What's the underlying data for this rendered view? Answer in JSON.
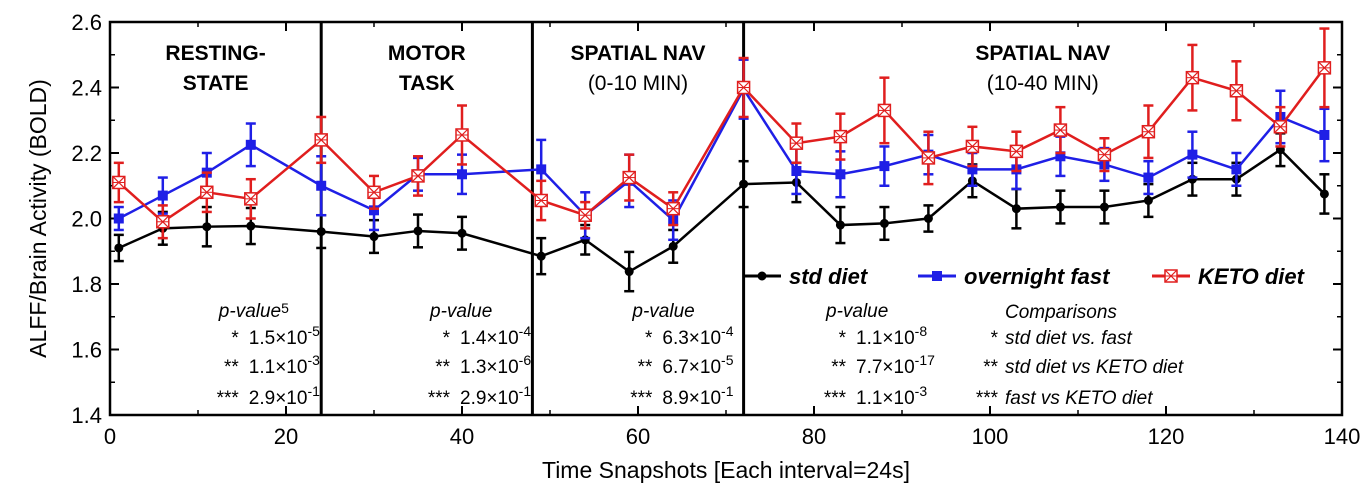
{
  "chart_data": {
    "type": "line",
    "title": "",
    "xlabel": "Time Snapshots [Each interval=24s]",
    "ylabel": "ALFF/Brain Activity (BOLD)",
    "xlim": [
      0,
      140
    ],
    "ylim": [
      1.4,
      2.6
    ],
    "xticks": [
      0,
      20,
      40,
      60,
      80,
      100,
      120,
      140
    ],
    "yticks": [
      "1.4",
      "1.6",
      "1.8",
      "2.0",
      "2.2",
      "2.4",
      "2.6"
    ],
    "x": [
      1,
      6,
      11,
      16,
      24,
      30,
      35,
      40,
      49,
      54,
      59,
      64,
      72,
      78,
      83,
      88,
      93,
      98,
      103,
      108,
      113,
      118,
      123,
      128,
      133,
      138
    ],
    "series": [
      {
        "name": "std diet",
        "color": "#000000",
        "marker": "circle",
        "values": [
          1.91,
          1.97,
          1.975,
          1.977,
          1.96,
          1.945,
          1.962,
          1.955,
          1.885,
          1.935,
          1.838,
          1.915,
          2.105,
          2.11,
          1.98,
          1.985,
          2.0,
          2.115,
          2.03,
          2.035,
          2.035,
          2.055,
          2.12,
          2.12,
          2.21,
          2.075
        ],
        "errors": [
          0.04,
          0.05,
          0.06,
          0.055,
          0.05,
          0.05,
          0.05,
          0.05,
          0.055,
          0.045,
          0.06,
          0.05,
          0.07,
          0.06,
          0.055,
          0.05,
          0.04,
          0.05,
          0.06,
          0.05,
          0.05,
          0.05,
          0.05,
          0.05,
          0.05,
          0.06
        ]
      },
      {
        "name": "overnight fast",
        "color": "#1f1fe6",
        "marker": "square",
        "values": [
          2.0,
          2.07,
          2.14,
          2.225,
          2.1,
          2.025,
          2.135,
          2.135,
          2.15,
          2.01,
          2.115,
          1.995,
          2.395,
          2.145,
          2.135,
          2.16,
          2.195,
          2.15,
          2.15,
          2.19,
          2.165,
          2.125,
          2.195,
          2.15,
          2.31,
          2.255
        ],
        "errors": [
          0.035,
          0.055,
          0.06,
          0.065,
          0.09,
          0.06,
          0.05,
          0.06,
          0.09,
          0.07,
          0.08,
          0.06,
          0.09,
          0.07,
          0.07,
          0.06,
          0.06,
          0.05,
          0.06,
          0.06,
          0.05,
          0.05,
          0.07,
          0.05,
          0.08,
          0.08
        ]
      },
      {
        "name": "KETO diet",
        "color": "#e01e1e",
        "marker": "square-x",
        "values": [
          2.11,
          1.99,
          2.08,
          2.06,
          2.24,
          2.08,
          2.13,
          2.255,
          2.055,
          2.01,
          2.125,
          2.03,
          2.4,
          2.23,
          2.25,
          2.33,
          2.185,
          2.22,
          2.205,
          2.27,
          2.195,
          2.265,
          2.43,
          2.39,
          2.28,
          2.46
        ],
        "errors": [
          0.06,
          0.05,
          0.06,
          0.06,
          0.07,
          0.05,
          0.06,
          0.09,
          0.06,
          0.04,
          0.07,
          0.05,
          0.09,
          0.06,
          0.07,
          0.1,
          0.08,
          0.06,
          0.06,
          0.07,
          0.05,
          0.08,
          0.1,
          0.09,
          0.06,
          0.12
        ]
      }
    ],
    "dividers": [
      24,
      48,
      72
    ],
    "segments": [
      {
        "x": 12,
        "line1": "RESTING-",
        "line2": "STATE",
        "bold2": true
      },
      {
        "x": 36,
        "line1": "MOTOR",
        "line2": "TASK",
        "bold2": true
      },
      {
        "x": 60,
        "line1": "SPATIAL NAV",
        "line2": "(0-10 MIN)",
        "bold2": false
      },
      {
        "x": 106,
        "line1": "SPATIAL NAV",
        "line2": "(10-40 MIN)",
        "bold2": false
      }
    ],
    "legend": {
      "placement": "right-middle",
      "entries": [
        "std diet",
        "overnight fast",
        "KETO diet"
      ]
    },
    "pvalues": [
      {
        "x": 16,
        "header": "p-value",
        "sup_after_header": "5",
        "rows": [
          {
            "stars": "*",
            "mant": "1.5",
            "exp": "-5"
          },
          {
            "stars": "**",
            "mant": "1.1",
            "exp": "-3"
          },
          {
            "stars": "***",
            "mant": "2.9",
            "exp": "-1"
          }
        ]
      },
      {
        "x": 40,
        "header": "p-value",
        "sup_after_header": "",
        "rows": [
          {
            "stars": "*",
            "mant": "1.4",
            "exp": "-4"
          },
          {
            "stars": "**",
            "mant": "1.3",
            "exp": "-6"
          },
          {
            "stars": "***",
            "mant": "2.9",
            "exp": "-1"
          }
        ]
      },
      {
        "x": 63,
        "header": "p-value",
        "sup_after_header": "",
        "rows": [
          {
            "stars": "*",
            "mant": "6.3",
            "exp": "-4"
          },
          {
            "stars": "**",
            "mant": "6.7",
            "exp": "-5"
          },
          {
            "stars": "***",
            "mant": "8.9",
            "exp": "-1"
          }
        ]
      },
      {
        "x": 85,
        "header": "p-value",
        "sup_after_header": "",
        "rows": [
          {
            "stars": "*",
            "mant": "1.1",
            "exp": "-8"
          },
          {
            "stars": "**",
            "mant": "7.7",
            "exp": "-17"
          },
          {
            "stars": "***",
            "mant": "1.1",
            "exp": "-3"
          }
        ]
      }
    ],
    "comparisons": {
      "header": "Comparisons",
      "rows": [
        {
          "stars": "*",
          "text": "std diet vs. fast"
        },
        {
          "stars": "**",
          "text": "std diet vs KETO diet"
        },
        {
          "stars": "***",
          "text": "fast vs KETO diet"
        }
      ]
    }
  }
}
